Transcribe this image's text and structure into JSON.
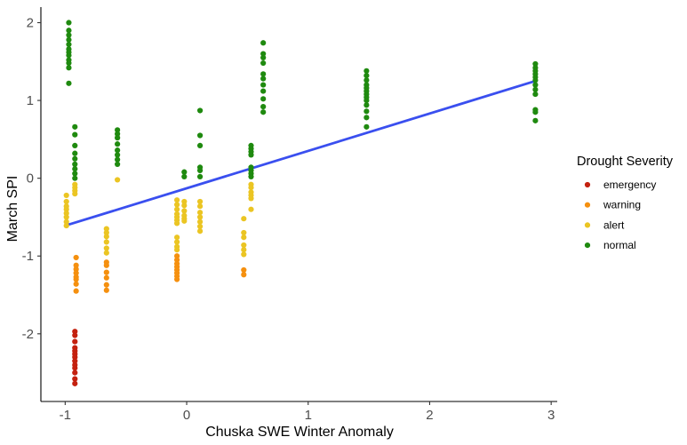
{
  "chart_data": {
    "type": "scatter",
    "title": "",
    "xlabel": "Chuska SWE Winter Anomaly",
    "ylabel": "March SPI",
    "xlim": [
      -1.2,
      3.05
    ],
    "ylim": [
      -2.87,
      2.2
    ],
    "x_ticks": [
      -1,
      0,
      1,
      2,
      3
    ],
    "y_ticks": [
      -2,
      -1,
      0,
      1,
      2
    ],
    "grid": false,
    "legend": {
      "title": "Drought Severity",
      "placement": "right",
      "entries": [
        {
          "name": "emergency",
          "color": "#C4210F"
        },
        {
          "name": "warning",
          "color": "#F5900F"
        },
        {
          "name": "alert",
          "color": "#EBC523"
        },
        {
          "name": "normal",
          "color": "#1F8A0F"
        }
      ]
    },
    "trend_line": {
      "x": [
        -0.98,
        2.87
      ],
      "y": [
        -0.6,
        1.25
      ],
      "color": "#3A4FEF"
    },
    "series": [
      {
        "name": "emergency",
        "color": "#C4210F",
        "points": [
          [
            -0.92,
            -1.97
          ],
          [
            -0.92,
            -2.02
          ],
          [
            -0.92,
            -2.1
          ],
          [
            -0.92,
            -2.18
          ],
          [
            -0.92,
            -2.22
          ],
          [
            -0.92,
            -2.26
          ],
          [
            -0.92,
            -2.3
          ],
          [
            -0.92,
            -2.35
          ],
          [
            -0.92,
            -2.4
          ],
          [
            -0.92,
            -2.44
          ],
          [
            -0.92,
            -2.5
          ],
          [
            -0.92,
            -2.58
          ],
          [
            -0.92,
            -2.64
          ]
        ]
      },
      {
        "name": "warning",
        "color": "#F5900F",
        "points": [
          [
            -0.91,
            -1.02
          ],
          [
            -0.91,
            -1.12
          ],
          [
            -0.91,
            -1.17
          ],
          [
            -0.91,
            -1.22
          ],
          [
            -0.91,
            -1.27
          ],
          [
            -0.91,
            -1.3
          ],
          [
            -0.91,
            -1.36
          ],
          [
            -0.91,
            -1.45
          ],
          [
            -0.66,
            -1.08
          ],
          [
            -0.66,
            -1.12
          ],
          [
            -0.66,
            -1.21
          ],
          [
            -0.66,
            -1.28
          ],
          [
            -0.66,
            -1.37
          ],
          [
            -0.66,
            -1.44
          ],
          [
            -0.08,
            -1.0
          ],
          [
            -0.08,
            -1.05
          ],
          [
            -0.08,
            -1.1
          ],
          [
            -0.08,
            -1.14
          ],
          [
            -0.08,
            -1.18
          ],
          [
            -0.08,
            -1.22
          ],
          [
            -0.08,
            -1.26
          ],
          [
            -0.08,
            -1.3
          ],
          [
            0.47,
            -1.18
          ],
          [
            0.47,
            -1.24
          ]
        ]
      },
      {
        "name": "alert",
        "color": "#EBC523",
        "points": [
          [
            -0.99,
            -0.22
          ],
          [
            -0.99,
            -0.3
          ],
          [
            -0.99,
            -0.36
          ],
          [
            -0.99,
            -0.4
          ],
          [
            -0.99,
            -0.45
          ],
          [
            -0.99,
            -0.5
          ],
          [
            -0.99,
            -0.56
          ],
          [
            -0.99,
            -0.61
          ],
          [
            -0.92,
            -0.08
          ],
          [
            -0.92,
            -0.12
          ],
          [
            -0.92,
            -0.16
          ],
          [
            -0.92,
            -0.2
          ],
          [
            -0.66,
            -0.65
          ],
          [
            -0.66,
            -0.7
          ],
          [
            -0.66,
            -0.75
          ],
          [
            -0.66,
            -0.82
          ],
          [
            -0.66,
            -0.9
          ],
          [
            -0.66,
            -0.96
          ],
          [
            -0.57,
            -0.02
          ],
          [
            -0.08,
            -0.28
          ],
          [
            -0.08,
            -0.34
          ],
          [
            -0.08,
            -0.4
          ],
          [
            -0.08,
            -0.46
          ],
          [
            -0.08,
            -0.5
          ],
          [
            -0.08,
            -0.54
          ],
          [
            -0.08,
            -0.58
          ],
          [
            -0.08,
            -0.76
          ],
          [
            -0.08,
            -0.82
          ],
          [
            -0.08,
            -0.88
          ],
          [
            -0.08,
            -0.92
          ],
          [
            -0.02,
            -0.3
          ],
          [
            -0.02,
            -0.35
          ],
          [
            -0.02,
            -0.42
          ],
          [
            -0.02,
            -0.48
          ],
          [
            -0.02,
            -0.52
          ],
          [
            -0.02,
            -0.55
          ],
          [
            0.11,
            -0.3
          ],
          [
            0.11,
            -0.36
          ],
          [
            0.11,
            -0.44
          ],
          [
            0.11,
            -0.5
          ],
          [
            0.11,
            -0.56
          ],
          [
            0.11,
            -0.62
          ],
          [
            0.11,
            -0.68
          ],
          [
            0.47,
            -0.52
          ],
          [
            0.47,
            -0.7
          ],
          [
            0.47,
            -0.76
          ],
          [
            0.47,
            -0.86
          ],
          [
            0.47,
            -0.92
          ],
          [
            0.47,
            -0.98
          ],
          [
            0.53,
            -0.08
          ],
          [
            0.53,
            -0.12
          ],
          [
            0.53,
            -0.18
          ],
          [
            0.53,
            -0.22
          ],
          [
            0.53,
            -0.26
          ],
          [
            0.53,
            -0.4
          ]
        ]
      },
      {
        "name": "normal",
        "color": "#1F8A0F",
        "points": [
          [
            -0.97,
            2.0
          ],
          [
            -0.97,
            1.9
          ],
          [
            -0.97,
            1.84
          ],
          [
            -0.97,
            1.78
          ],
          [
            -0.97,
            1.72
          ],
          [
            -0.97,
            1.66
          ],
          [
            -0.97,
            1.62
          ],
          [
            -0.97,
            1.58
          ],
          [
            -0.97,
            1.52
          ],
          [
            -0.97,
            1.48
          ],
          [
            -0.97,
            1.42
          ],
          [
            -0.97,
            1.22
          ],
          [
            -0.92,
            0.66
          ],
          [
            -0.92,
            0.56
          ],
          [
            -0.92,
            0.42
          ],
          [
            -0.92,
            0.32
          ],
          [
            -0.92,
            0.25
          ],
          [
            -0.92,
            0.18
          ],
          [
            -0.92,
            0.12
          ],
          [
            -0.92,
            0.06
          ],
          [
            -0.92,
            0.0
          ],
          [
            -0.57,
            0.62
          ],
          [
            -0.57,
            0.57
          ],
          [
            -0.57,
            0.52
          ],
          [
            -0.57,
            0.44
          ],
          [
            -0.57,
            0.36
          ],
          [
            -0.57,
            0.3
          ],
          [
            -0.57,
            0.24
          ],
          [
            -0.57,
            0.18
          ],
          [
            -0.02,
            0.08
          ],
          [
            -0.02,
            0.02
          ],
          [
            0.11,
            0.87
          ],
          [
            0.11,
            0.55
          ],
          [
            0.11,
            0.42
          ],
          [
            0.11,
            0.14
          ],
          [
            0.11,
            0.1
          ],
          [
            0.11,
            0.02
          ],
          [
            0.53,
            0.42
          ],
          [
            0.53,
            0.38
          ],
          [
            0.53,
            0.34
          ],
          [
            0.53,
            0.3
          ],
          [
            0.53,
            0.14
          ],
          [
            0.53,
            0.1
          ],
          [
            0.53,
            0.06
          ],
          [
            0.53,
            0.02
          ],
          [
            0.63,
            1.74
          ],
          [
            0.63,
            1.6
          ],
          [
            0.63,
            1.55
          ],
          [
            0.63,
            1.48
          ],
          [
            0.63,
            1.34
          ],
          [
            0.63,
            1.28
          ],
          [
            0.63,
            1.2
          ],
          [
            0.63,
            1.12
          ],
          [
            0.63,
            1.02
          ],
          [
            0.63,
            0.92
          ],
          [
            0.63,
            0.85
          ],
          [
            1.48,
            1.38
          ],
          [
            1.48,
            1.32
          ],
          [
            1.48,
            1.26
          ],
          [
            1.48,
            1.2
          ],
          [
            1.48,
            1.16
          ],
          [
            1.48,
            1.12
          ],
          [
            1.48,
            1.08
          ],
          [
            1.48,
            1.04
          ],
          [
            1.48,
            1.0
          ],
          [
            1.48,
            0.94
          ],
          [
            1.48,
            0.86
          ],
          [
            1.48,
            0.78
          ],
          [
            1.48,
            0.66
          ],
          [
            2.87,
            1.47
          ],
          [
            2.87,
            1.42
          ],
          [
            2.87,
            1.38
          ],
          [
            2.87,
            1.34
          ],
          [
            2.87,
            1.3
          ],
          [
            2.87,
            1.26
          ],
          [
            2.87,
            1.2
          ],
          [
            2.87,
            1.14
          ],
          [
            2.87,
            1.08
          ],
          [
            2.87,
            0.88
          ],
          [
            2.87,
            0.85
          ],
          [
            2.87,
            0.74
          ]
        ]
      }
    ]
  }
}
